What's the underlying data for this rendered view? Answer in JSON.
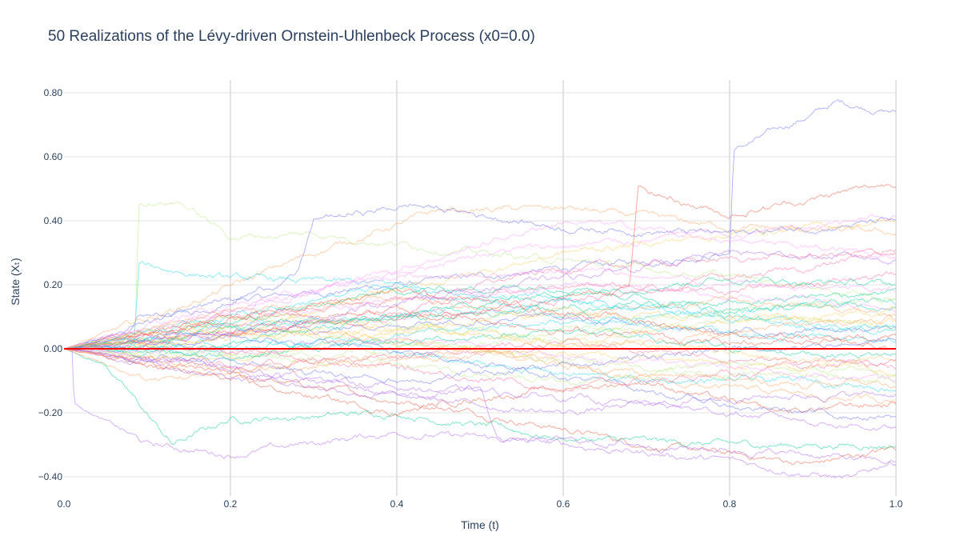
{
  "chart_data": {
    "type": "line",
    "title": "50 Realizations of the Lévy-driven Ornstein-Uhlenbeck Process (x0=0.0)",
    "xlabel": "Time (t)",
    "ylabel": "State (Xₜ)",
    "xlim": [
      0,
      1
    ],
    "ylim": [
      -0.46,
      0.84
    ],
    "x_ticks": [
      0,
      0.2,
      0.4,
      0.6,
      0.8,
      1
    ],
    "x_tick_labels": [
      "0.0",
      "0.2",
      "0.4",
      "0.6",
      "0.8",
      "1.0"
    ],
    "y_ticks": [
      -0.4,
      -0.2,
      0,
      0.2,
      0.4,
      0.6,
      0.8
    ],
    "y_tick_labels": [
      "−0.40",
      "−0.20",
      "0.00",
      "0.20",
      "0.40",
      "0.60",
      "0.80"
    ],
    "grid": true,
    "legend": "none",
    "mean_line": {
      "color": "#ff0000",
      "x": [
        0,
        1
      ],
      "y": [
        0,
        0
      ]
    },
    "series_colors": [
      "#636efa",
      "#EF553B",
      "#00cc96",
      "#ab63fa",
      "#FFA15A",
      "#19d3f3",
      "#FF6692",
      "#B6E880",
      "#FF97FF",
      "#FECB52"
    ],
    "series": [
      {
        "x": [
          0,
          0.08,
          0.09,
          0.2,
          0.4,
          0.6,
          0.8,
          0.805,
          0.93,
          1
        ],
        "y": [
          0,
          0.05,
          0.1,
          0.15,
          0.2,
          0.25,
          0.3,
          0.62,
          0.77,
          0.74
        ]
      },
      {
        "x": [
          0,
          0.1,
          0.3,
          0.5,
          0.7,
          0.9,
          1
        ],
        "y": [
          0,
          -0.05,
          -0.12,
          -0.2,
          -0.3,
          -0.36,
          -0.31
        ]
      },
      {
        "x": [
          0,
          0.05,
          0.13,
          0.2,
          0.4,
          0.6,
          0.8,
          1
        ],
        "y": [
          0,
          -0.05,
          -0.3,
          -0.22,
          -0.2,
          -0.28,
          -0.3,
          -0.3
        ]
      },
      {
        "x": [
          0,
          0.01,
          0.012,
          0.1,
          0.2,
          0.4,
          0.6,
          0.8,
          0.95,
          1
        ],
        "y": [
          0,
          0,
          -0.17,
          -0.3,
          -0.33,
          -0.26,
          -0.3,
          -0.35,
          -0.41,
          -0.34
        ]
      },
      {
        "x": [
          0,
          0.15,
          0.3,
          0.45,
          0.6,
          0.8,
          1
        ],
        "y": [
          0,
          0.14,
          0.3,
          0.43,
          0.44,
          0.38,
          0.36
        ]
      },
      {
        "x": [
          0,
          0.085,
          0.09,
          0.2,
          0.4,
          0.6,
          0.8,
          1
        ],
        "y": [
          0,
          0.03,
          0.26,
          0.22,
          0.2,
          0.15,
          0.1,
          0.05
        ]
      },
      {
        "x": [
          0,
          0.2,
          0.4,
          0.6,
          0.8,
          1
        ],
        "y": [
          0,
          0.1,
          0.15,
          0.25,
          0.28,
          0.3
        ]
      },
      {
        "x": [
          0,
          0.085,
          0.09,
          0.14,
          0.2,
          0.3,
          0.5,
          0.7,
          0.9,
          1
        ],
        "y": [
          0,
          0.02,
          0.46,
          0.46,
          0.35,
          0.36,
          0.3,
          0.25,
          0.2,
          0.15
        ]
      },
      {
        "x": [
          0,
          0.2,
          0.4,
          0.6,
          0.8,
          1
        ],
        "y": [
          0,
          0.12,
          0.25,
          0.4,
          0.35,
          0.42
        ]
      },
      {
        "x": [
          0,
          0.2,
          0.4,
          0.6,
          0.8,
          1
        ],
        "y": [
          0,
          0.05,
          0.18,
          0.3,
          0.36,
          0.4
        ]
      },
      {
        "x": [
          0,
          0.2,
          0.28,
          0.3,
          0.42,
          0.6,
          0.8,
          1
        ],
        "y": [
          0,
          0.15,
          0.23,
          0.4,
          0.45,
          0.38,
          0.36,
          0.4
        ]
      },
      {
        "x": [
          0,
          0.2,
          0.4,
          0.5,
          0.7,
          0.85,
          1
        ],
        "y": [
          0,
          -0.1,
          -0.2,
          -0.15,
          -0.1,
          -0.2,
          -0.17
        ]
      },
      {
        "x": [
          0,
          0.2,
          0.4,
          0.6,
          0.8,
          1
        ],
        "y": [
          0,
          0.08,
          0.18,
          0.2,
          0.12,
          0.14
        ]
      },
      {
        "x": [
          0,
          0.2,
          0.4,
          0.5,
          0.52,
          0.7,
          0.9,
          1
        ],
        "y": [
          0,
          -0.05,
          -0.15,
          -0.12,
          -0.28,
          -0.3,
          -0.33,
          -0.36
        ]
      },
      {
        "x": [
          0,
          0.1,
          0.3,
          0.5,
          0.7,
          0.9,
          1
        ],
        "y": [
          0,
          -0.1,
          -0.05,
          0.0,
          -0.1,
          -0.15,
          -0.16
        ]
      },
      {
        "x": [
          0,
          0.3,
          0.5,
          0.7,
          0.9,
          1
        ],
        "y": [
          0,
          0.02,
          -0.05,
          -0.1,
          -0.1,
          -0.12
        ]
      },
      {
        "x": [
          0,
          0.2,
          0.4,
          0.6,
          0.8,
          1
        ],
        "y": [
          0,
          0.05,
          0.12,
          0.2,
          0.18,
          0.23
        ]
      },
      {
        "x": [
          0,
          0.2,
          0.4,
          0.6,
          0.8,
          1
        ],
        "y": [
          0,
          -0.02,
          -0.05,
          -0.1,
          -0.05,
          -0.08
        ]
      },
      {
        "x": [
          0,
          0.25,
          0.5,
          0.75,
          1
        ],
        "y": [
          0,
          0.15,
          0.3,
          0.35,
          0.29
        ]
      },
      {
        "x": [
          0,
          0.25,
          0.5,
          0.75,
          1
        ],
        "y": [
          0,
          0.1,
          0.05,
          0.0,
          -0.07
        ]
      },
      {
        "x": [
          0,
          0.2,
          0.4,
          0.6,
          0.8,
          1
        ],
        "y": [
          0,
          0.04,
          0.08,
          0.1,
          0.05,
          0.06
        ]
      },
      {
        "x": [
          0,
          0.2,
          0.4,
          0.6,
          0.68,
          0.69,
          0.8,
          1
        ],
        "y": [
          0,
          0.05,
          0.1,
          0.15,
          0.2,
          0.5,
          0.42,
          0.52
        ]
      },
      {
        "x": [
          0,
          0.2,
          0.4,
          0.6,
          0.8,
          1
        ],
        "y": [
          0,
          0.06,
          0.1,
          0.12,
          0.15,
          0.18
        ]
      },
      {
        "x": [
          0,
          0.2,
          0.4,
          0.6,
          0.8,
          1
        ],
        "y": [
          0,
          -0.06,
          -0.12,
          -0.15,
          -0.2,
          -0.25
        ]
      },
      {
        "x": [
          0,
          0.2,
          0.4,
          0.6,
          0.8,
          1
        ],
        "y": [
          0,
          0.08,
          0.02,
          -0.05,
          -0.1,
          -0.12
        ]
      },
      {
        "x": [
          0,
          0.2,
          0.4,
          0.6,
          0.8,
          1
        ],
        "y": [
          0,
          0.1,
          0.2,
          0.1,
          0.05,
          0.02
        ]
      },
      {
        "x": [
          0,
          0.3,
          0.6,
          0.9,
          1
        ],
        "y": [
          0,
          0.08,
          0.15,
          0.25,
          0.31
        ]
      },
      {
        "x": [
          0,
          0.3,
          0.6,
          0.9,
          1
        ],
        "y": [
          0,
          -0.02,
          0.05,
          0.1,
          0.07
        ]
      },
      {
        "x": [
          0,
          0.3,
          0.6,
          0.9,
          1
        ],
        "y": [
          0,
          0.12,
          0.2,
          0.15,
          0.12
        ]
      },
      {
        "x": [
          0,
          0.3,
          0.6,
          0.9,
          1
        ],
        "y": [
          0,
          0.05,
          -0.02,
          -0.06,
          -0.04
        ]
      },
      {
        "x": [
          0,
          0.2,
          0.4,
          0.6,
          0.8,
          1
        ],
        "y": [
          0,
          -0.04,
          -0.1,
          -0.05,
          0.0,
          0.03
        ]
      },
      {
        "x": [
          0,
          0.2,
          0.4,
          0.6,
          0.8,
          1
        ],
        "y": [
          0,
          0.1,
          0.18,
          0.12,
          0.05,
          0.0
        ]
      },
      {
        "x": [
          0,
          0.2,
          0.4,
          0.6,
          0.8,
          1
        ],
        "y": [
          0,
          0.02,
          0.1,
          0.18,
          0.22,
          0.2
        ]
      },
      {
        "x": [
          0,
          0.2,
          0.4,
          0.6,
          0.8,
          1
        ],
        "y": [
          0,
          -0.08,
          -0.15,
          -0.2,
          -0.15,
          -0.14
        ]
      },
      {
        "x": [
          0,
          0.2,
          0.4,
          0.6,
          0.8,
          1
        ],
        "y": [
          0,
          0.12,
          0.15,
          0.1,
          0.15,
          0.1
        ]
      },
      {
        "x": [
          0,
          0.2,
          0.4,
          0.6,
          0.8,
          1
        ],
        "y": [
          0,
          0.0,
          0.04,
          0.08,
          0.12,
          0.15
        ]
      },
      {
        "x": [
          0,
          0.2,
          0.4,
          0.6,
          0.8,
          1
        ],
        "y": [
          0,
          -0.05,
          -0.02,
          0.02,
          -0.03,
          -0.05
        ]
      },
      {
        "x": [
          0,
          0.2,
          0.4,
          0.6,
          0.8,
          1
        ],
        "y": [
          0,
          0.06,
          0.02,
          -0.03,
          -0.08,
          -0.1
        ]
      },
      {
        "x": [
          0,
          0.2,
          0.4,
          0.6,
          0.8,
          1
        ],
        "y": [
          0,
          0.14,
          0.22,
          0.25,
          0.2,
          0.18
        ]
      },
      {
        "x": [
          0,
          0.2,
          0.4,
          0.6,
          0.8,
          1
        ],
        "y": [
          0,
          -0.03,
          0.06,
          0.12,
          0.1,
          0.08
        ]
      },
      {
        "x": [
          0,
          0.2,
          0.4,
          0.6,
          0.8,
          1
        ],
        "y": [
          0,
          0.03,
          0.0,
          -0.08,
          -0.18,
          -0.22
        ]
      },
      {
        "x": [
          0,
          0.2,
          0.4,
          0.6,
          0.8,
          1
        ],
        "y": [
          0,
          0.09,
          0.12,
          0.06,
          0.02,
          0.04
        ]
      },
      {
        "x": [
          0,
          0.2,
          0.4,
          0.6,
          0.8,
          1
        ],
        "y": [
          0,
          -0.02,
          0.02,
          0.06,
          0.0,
          -0.02
        ]
      },
      {
        "x": [
          0,
          0.2,
          0.4,
          0.6,
          0.8,
          1
        ],
        "y": [
          0,
          0.05,
          0.15,
          0.22,
          0.3,
          0.28
        ]
      },
      {
        "x": [
          0,
          0.2,
          0.4,
          0.6,
          0.8,
          1
        ],
        "y": [
          0,
          -0.07,
          -0.04,
          0.0,
          0.05,
          0.1
        ]
      },
      {
        "x": [
          0,
          0.2,
          0.4,
          0.6,
          0.8,
          1
        ],
        "y": [
          0,
          0.07,
          0.1,
          0.15,
          0.1,
          0.06
        ]
      },
      {
        "x": [
          0,
          0.2,
          0.4,
          0.6,
          0.8,
          1
        ],
        "y": [
          0,
          0.0,
          -0.06,
          -0.12,
          -0.08,
          -0.04
        ]
      },
      {
        "x": [
          0,
          0.2,
          0.4,
          0.6,
          0.8,
          1
        ],
        "y": [
          0,
          0.11,
          0.08,
          0.04,
          0.12,
          0.16
        ]
      },
      {
        "x": [
          0,
          0.2,
          0.4,
          0.6,
          0.8,
          1
        ],
        "y": [
          0,
          -0.01,
          0.03,
          -0.02,
          -0.06,
          -0.1
        ]
      },
      {
        "x": [
          0,
          0.2,
          0.4,
          0.6,
          0.8,
          1
        ],
        "y": [
          0,
          0.04,
          0.06,
          0.02,
          0.08,
          0.12
        ]
      }
    ]
  }
}
